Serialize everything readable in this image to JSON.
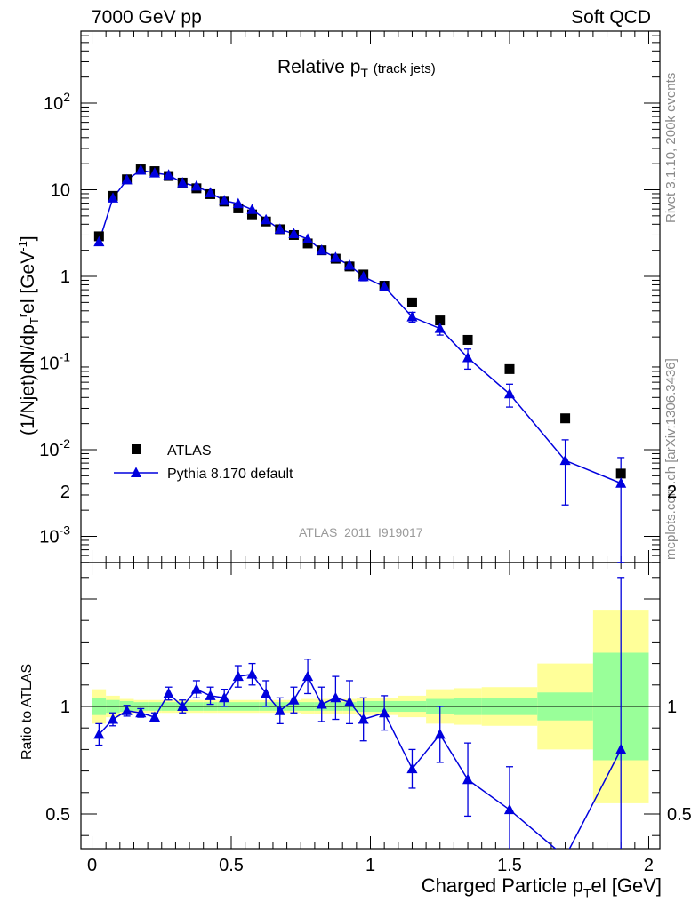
{
  "header": {
    "left": "7000 GeV pp",
    "right": "Soft QCD"
  },
  "side_labels": {
    "rivet": "Rivet 3.1.10,  200k events",
    "mcplots": "mcplots.cern.ch [arXiv:1306.3436]"
  },
  "watermark": "ATLAS_2011_I919017",
  "chart_data": [
    {
      "type": "scatter",
      "title": "Relative p_T (track jets)",
      "title_main": "Relative p",
      "title_sub": "T",
      "title_note": "(track jets)",
      "ylabel": "(1/Njet)dN/dp_T^rel [GeV^-1]",
      "yscale": "log",
      "ylim": [
        0.0005,
        800
      ],
      "xlim": [
        -0.04,
        2.04
      ],
      "ytick_labels": [
        "10^-3",
        "10^-2",
        "10^-1",
        "1",
        "10",
        "10^2"
      ],
      "legend": {
        "position": "bottom-left",
        "entries": [
          "ATLAS",
          "Pythia 8.170 default"
        ]
      },
      "series": [
        {
          "name": "ATLAS",
          "marker": "square",
          "color": "#000000",
          "x": [
            0.025,
            0.075,
            0.125,
            0.175,
            0.225,
            0.275,
            0.325,
            0.375,
            0.425,
            0.475,
            0.525,
            0.575,
            0.625,
            0.675,
            0.725,
            0.775,
            0.825,
            0.875,
            0.925,
            0.975,
            1.05,
            1.15,
            1.25,
            1.35,
            1.5,
            1.7,
            1.9
          ],
          "y": [
            2.9,
            8.5,
            13.2,
            17.2,
            16.4,
            14.4,
            12.1,
            10.4,
            8.9,
            7.3,
            6.1,
            5.2,
            4.3,
            3.5,
            3.0,
            2.4,
            2.0,
            1.6,
            1.3,
            1.05,
            0.78,
            0.5,
            0.31,
            0.185,
            0.085,
            0.023,
            0.0053
          ]
        },
        {
          "name": "Pythia 8.170 default",
          "marker": "triangle",
          "color": "#0000dd",
          "x": [
            0.025,
            0.075,
            0.125,
            0.175,
            0.225,
            0.275,
            0.325,
            0.375,
            0.425,
            0.475,
            0.525,
            0.575,
            0.625,
            0.675,
            0.725,
            0.775,
            0.825,
            0.875,
            0.925,
            0.975,
            1.05,
            1.15,
            1.25,
            1.35,
            1.5,
            1.7,
            1.9
          ],
          "y": [
            2.5,
            8.0,
            13.0,
            16.8,
            15.6,
            14.8,
            12.0,
            11.0,
            9.2,
            7.5,
            6.9,
            5.9,
            4.5,
            3.5,
            3.1,
            2.7,
            2.0,
            1.65,
            1.34,
            0.99,
            0.76,
            0.34,
            0.25,
            0.115,
            0.044,
            0.0075,
            0.0041
          ],
          "yerr_lo": [
            0.15,
            0.35,
            0.45,
            0.5,
            0.5,
            0.45,
            0.4,
            0.38,
            0.33,
            0.3,
            0.3,
            0.28,
            0.25,
            0.22,
            0.2,
            0.19,
            0.16,
            0.14,
            0.12,
            0.1,
            0.06,
            0.045,
            0.04,
            0.03,
            0.013,
            0.0052,
            0.0036
          ],
          "yerr_hi": [
            0.15,
            0.35,
            0.45,
            0.5,
            0.5,
            0.45,
            0.4,
            0.38,
            0.33,
            0.3,
            0.3,
            0.28,
            0.25,
            0.22,
            0.2,
            0.19,
            0.16,
            0.14,
            0.12,
            0.1,
            0.06,
            0.045,
            0.04,
            0.03,
            0.013,
            0.0055,
            0.004
          ]
        }
      ]
    },
    {
      "type": "line",
      "ylabel": "Ratio to ATLAS",
      "xlabel": "Charged Particle p_T^rel [GeV]",
      "xlabel_main": "Charged Particle p",
      "xlabel_sub": "T",
      "xlabel_rest": "el [GeV]",
      "ylim": [
        0.35,
        2.3
      ],
      "xlim": [
        -0.04,
        2.04
      ],
      "ytick_labels": [
        "0.5",
        "1",
        "2"
      ],
      "xtick_labels": [
        "0",
        "0.5",
        "1",
        "1.5",
        "2"
      ],
      "bands": {
        "bin_edges": [
          0.0,
          0.05,
          0.1,
          0.15,
          0.2,
          0.25,
          0.3,
          0.35,
          0.4,
          0.45,
          0.5,
          0.55,
          0.6,
          0.65,
          0.7,
          0.75,
          0.8,
          0.85,
          0.9,
          0.95,
          1.0,
          1.1,
          1.2,
          1.3,
          1.4,
          1.6,
          1.8,
          2.0
        ],
        "stat_halfwidth": [
          0.04,
          0.03,
          0.025,
          0.02,
          0.02,
          0.02,
          0.02,
          0.02,
          0.02,
          0.02,
          0.02,
          0.02,
          0.02,
          0.02,
          0.02,
          0.02,
          0.02,
          0.02,
          0.02,
          0.025,
          0.025,
          0.025,
          0.035,
          0.04,
          0.04,
          0.065,
          0.25
        ],
        "total_halfwidth": [
          0.08,
          0.05,
          0.035,
          0.03,
          0.03,
          0.03,
          0.03,
          0.03,
          0.03,
          0.03,
          0.03,
          0.03,
          0.03,
          0.03,
          0.03,
          0.035,
          0.035,
          0.035,
          0.035,
          0.04,
          0.04,
          0.05,
          0.08,
          0.085,
          0.09,
          0.2,
          0.45
        ],
        "stat_color": "#99ff99",
        "total_color": "#ffff99"
      },
      "series": [
        {
          "name": "Pythia 8.170 default",
          "color": "#0000dd",
          "x": [
            0.025,
            0.075,
            0.125,
            0.175,
            0.225,
            0.275,
            0.325,
            0.375,
            0.425,
            0.475,
            0.525,
            0.575,
            0.625,
            0.675,
            0.725,
            0.775,
            0.825,
            0.875,
            0.925,
            0.975,
            1.05,
            1.15,
            1.25,
            1.35,
            1.5,
            1.7,
            1.9
          ],
          "y": [
            0.87,
            0.94,
            0.98,
            0.97,
            0.95,
            1.06,
            1.0,
            1.08,
            1.05,
            1.04,
            1.14,
            1.15,
            1.06,
            0.98,
            1.03,
            1.14,
            1.01,
            1.04,
            1.02,
            0.94,
            0.97,
            0.71,
            0.87,
            0.66,
            0.52,
            0.3,
            0.8
          ],
          "yerr": [
            0.05,
            0.03,
            0.025,
            0.02,
            0.02,
            0.03,
            0.03,
            0.04,
            0.04,
            0.04,
            0.05,
            0.05,
            0.06,
            0.06,
            0.06,
            0.08,
            0.08,
            0.1,
            0.1,
            0.1,
            0.08,
            0.09,
            0.13,
            0.17,
            0.2,
            0.3,
            0.8
          ]
        }
      ]
    }
  ]
}
